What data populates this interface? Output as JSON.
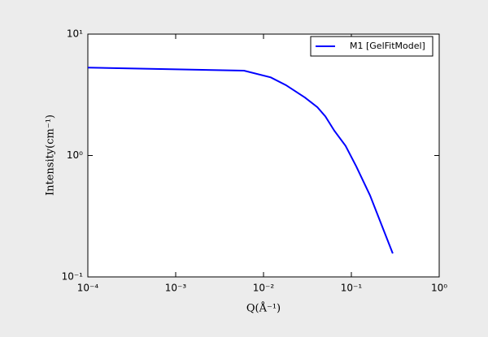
{
  "chart_data": {
    "type": "line",
    "x_label": "Q(Å⁻¹)",
    "y_label": "Intensity(cm⁻¹)",
    "xscale": "log",
    "yscale": "log",
    "xlim": [
      0.0001,
      1
    ],
    "ylim": [
      0.1,
      10
    ],
    "xticks": [
      {
        "value": 0.0001,
        "label": "10⁻⁴"
      },
      {
        "value": 0.001,
        "label": "10⁻³"
      },
      {
        "value": 0.01,
        "label": "10⁻²"
      },
      {
        "value": 0.1,
        "label": "10⁻¹"
      },
      {
        "value": 1,
        "label": "10⁰"
      }
    ],
    "yticks": [
      {
        "value": 0.1,
        "label": "10⁻¹"
      },
      {
        "value": 1,
        "label": "10⁰"
      },
      {
        "value": 10,
        "label": "10¹"
      }
    ],
    "legend": "upper right",
    "x": [
      0.0001,
      0.006,
      0.0121,
      0.018,
      0.0297,
      0.041,
      0.0506,
      0.064,
      0.086,
      0.114,
      0.163,
      0.296
    ],
    "series": [
      {
        "name": "M1 [GelFitModel]",
        "color": "#0000ff",
        "values": [
          5.3,
          5.0,
          4.4,
          3.8,
          3.0,
          2.5,
          2.1,
          1.6,
          1.2,
          0.81,
          0.47,
          0.156
        ]
      }
    ]
  }
}
